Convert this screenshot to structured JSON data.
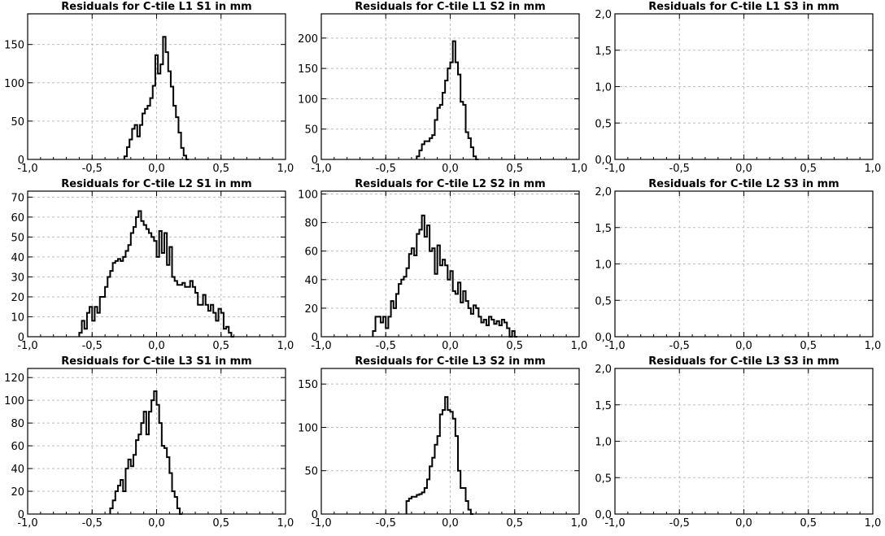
{
  "figure": {
    "title": ""
  },
  "chart_data": [
    {
      "type": "histogram",
      "title": "Residuals for C-tile L1 S1 in mm",
      "xlim": [
        -1.0,
        1.0
      ],
      "ylim": [
        0,
        190
      ],
      "xticks": [
        -1.0,
        -0.5,
        0.0,
        0.5,
        1.0
      ],
      "xtick_labels": [
        "-1,0",
        "-0,5",
        "0,0",
        "0,5",
        "1,0"
      ],
      "yticks": [
        0,
        50,
        100,
        150
      ],
      "ytick_labels": [
        "0",
        "50",
        "100",
        "150"
      ],
      "bin_edges_start": -0.25,
      "bin_width": 0.02,
      "counts": [
        4,
        16,
        26,
        40,
        45,
        30,
        45,
        60,
        66,
        70,
        80,
        96,
        136,
        112,
        124,
        160,
        140,
        115,
        95,
        70,
        55,
        35,
        15,
        5,
        0
      ],
      "grid": true
    },
    {
      "type": "histogram",
      "title": "Residuals for C-tile L1 S2 in mm",
      "xlim": [
        -1.0,
        1.0
      ],
      "ylim": [
        0,
        240
      ],
      "xticks": [
        -1.0,
        -0.5,
        0.0,
        0.5,
        1.0
      ],
      "xtick_labels": [
        "-1,0",
        "-0,5",
        "0,0",
        "0,5",
        "1,0"
      ],
      "yticks": [
        0,
        50,
        100,
        150,
        200
      ],
      "ytick_labels": [
        "0",
        "50",
        "100",
        "150",
        "200"
      ],
      "bin_edges_start": -0.26,
      "bin_width": 0.02,
      "counts": [
        5,
        15,
        25,
        30,
        30,
        35,
        40,
        65,
        85,
        90,
        110,
        130,
        150,
        160,
        195,
        160,
        140,
        95,
        90,
        45,
        35,
        20,
        5,
        0
      ],
      "grid": true
    },
    {
      "type": "histogram",
      "title": "Residuals for C-tile L1 S3 in mm",
      "xlim": [
        -1.0,
        1.0
      ],
      "ylim": [
        0,
        2.0
      ],
      "xticks": [
        -1.0,
        -0.5,
        0.0,
        0.5,
        1.0
      ],
      "xtick_labels": [
        "-1,0",
        "-0,5",
        "0,0",
        "0,5",
        "1,0"
      ],
      "yticks": [
        0,
        0.5,
        1.0,
        1.5,
        2.0
      ],
      "ytick_labels": [
        "0,0",
        "0,5",
        "1,0",
        "1,5",
        "2,0"
      ],
      "bin_edges_start": -0.6,
      "bin_width": 0.02,
      "counts": [],
      "grid": true
    },
    {
      "type": "histogram",
      "title": "Residuals for C-tile L2 S1 in mm",
      "xlim": [
        -1.0,
        1.0
      ],
      "ylim": [
        0,
        73
      ],
      "xticks": [
        -1.0,
        -0.5,
        0.0,
        0.5,
        1.0
      ],
      "xtick_labels": [
        "-1,0",
        "-0,5",
        "0,0",
        "0,5",
        "1,0"
      ],
      "yticks": [
        0,
        10,
        20,
        30,
        40,
        50,
        60,
        70
      ],
      "ytick_labels": [
        "0",
        "10",
        "20",
        "30",
        "40",
        "50",
        "60",
        "70"
      ],
      "bin_edges_start": -0.6,
      "bin_width": 0.02,
      "counts": [
        2,
        8,
        4,
        12,
        15,
        8,
        15,
        12,
        20,
        20,
        25,
        30,
        33,
        37,
        38,
        39,
        38,
        40,
        43,
        46,
        52,
        55,
        60,
        63,
        58,
        56,
        54,
        52,
        50,
        48,
        40,
        53,
        42,
        52,
        36,
        45,
        30,
        28,
        26,
        26,
        27,
        25,
        25,
        28,
        25,
        22,
        16,
        16,
        21,
        16,
        13,
        16,
        12,
        8,
        14,
        12,
        4,
        5,
        2,
        0
      ],
      "grid": true
    },
    {
      "type": "histogram",
      "title": "Residuals for C-tile L2 S2 in mm",
      "xlim": [
        -1.0,
        1.0
      ],
      "ylim": [
        0,
        102
      ],
      "xticks": [
        -1.0,
        -0.5,
        0.0,
        0.5,
        1.0
      ],
      "xtick_labels": [
        "-1,0",
        "-0,5",
        "0,0",
        "0,5",
        "1,0"
      ],
      "yticks": [
        0,
        20,
        40,
        60,
        80,
        100
      ],
      "ytick_labels": [
        "0",
        "20",
        "40",
        "60",
        "80",
        "100"
      ],
      "bin_edges_start": -0.6,
      "bin_width": 0.02,
      "counts": [
        4,
        14,
        14,
        10,
        14,
        6,
        14,
        25,
        20,
        30,
        37,
        40,
        42,
        48,
        58,
        62,
        57,
        72,
        75,
        85,
        70,
        78,
        60,
        62,
        44,
        64,
        50,
        54,
        50,
        40,
        46,
        32,
        30,
        38,
        24,
        32,
        25,
        20,
        16,
        22,
        20,
        14,
        10,
        12,
        8,
        14,
        12,
        9,
        11,
        8,
        12,
        10,
        6,
        0,
        4,
        0
      ],
      "grid": true
    },
    {
      "type": "histogram",
      "title": "Residuals for C-tile L2 S3 in mm",
      "xlim": [
        -1.0,
        1.0
      ],
      "ylim": [
        0,
        2.0
      ],
      "xticks": [
        -1.0,
        -0.5,
        0.0,
        0.5,
        1.0
      ],
      "xtick_labels": [
        "-1,0",
        "-0,5",
        "0,0",
        "0,5",
        "1,0"
      ],
      "yticks": [
        0,
        0.5,
        1.0,
        1.5,
        2.0
      ],
      "ytick_labels": [
        "0,0",
        "0,5",
        "1,0",
        "1,5",
        "2,0"
      ],
      "bin_edges_start": -0.6,
      "bin_width": 0.02,
      "counts": [],
      "grid": true
    },
    {
      "type": "histogram",
      "title": "Residuals for C-tile L3 S1 in mm",
      "xlim": [
        -1.0,
        1.0
      ],
      "ylim": [
        0,
        128
      ],
      "xticks": [
        -1.0,
        -0.5,
        0.0,
        0.5,
        1.0
      ],
      "xtick_labels": [
        "-1,0",
        "-0,5",
        "0,0",
        "0,5",
        "1,0"
      ],
      "yticks": [
        0,
        20,
        40,
        60,
        80,
        100,
        120
      ],
      "ytick_labels": [
        "0",
        "20",
        "40",
        "60",
        "80",
        "100",
        "120"
      ],
      "bin_edges_start": -0.36,
      "bin_width": 0.02,
      "counts": [
        5,
        12,
        20,
        25,
        30,
        20,
        40,
        48,
        42,
        52,
        65,
        70,
        80,
        90,
        70,
        90,
        100,
        108,
        96,
        80,
        60,
        58,
        50,
        36,
        20,
        15,
        5,
        0
      ],
      "grid": true
    },
    {
      "type": "histogram",
      "title": "Residuals for C-tile L3 S2 in mm",
      "xlim": [
        -1.0,
        1.0
      ],
      "ylim": [
        0,
        168
      ],
      "xticks": [
        -1.0,
        -0.5,
        0.0,
        0.5,
        1.0
      ],
      "xtick_labels": [
        "-1,0",
        "-0,5",
        "0,0",
        "0,5",
        "1,0"
      ],
      "yticks": [
        0,
        50,
        100,
        150
      ],
      "ytick_labels": [
        "0",
        "50",
        "100",
        "150"
      ],
      "bin_edges_start": -0.34,
      "bin_width": 0.02,
      "counts": [
        15,
        18,
        20,
        20,
        22,
        23,
        25,
        30,
        40,
        55,
        65,
        80,
        90,
        115,
        120,
        135,
        120,
        118,
        110,
        90,
        50,
        30,
        30,
        15,
        5,
        0
      ],
      "grid": true
    },
    {
      "type": "histogram",
      "title": "Residuals for C-tile L3 S3 in mm",
      "xlim": [
        -1.0,
        1.0
      ],
      "ylim": [
        0,
        2.0
      ],
      "xticks": [
        -1.0,
        -0.5,
        0.0,
        0.5,
        1.0
      ],
      "xtick_labels": [
        "-1,0",
        "-0,5",
        "0,0",
        "0,5",
        "1,0"
      ],
      "yticks": [
        0,
        0.5,
        1.0,
        1.5,
        2.0
      ],
      "ytick_labels": [
        "0,0",
        "0,5",
        "1,0",
        "1,5",
        "2,0"
      ],
      "bin_edges_start": -0.6,
      "bin_width": 0.02,
      "counts": [],
      "grid": true
    }
  ]
}
